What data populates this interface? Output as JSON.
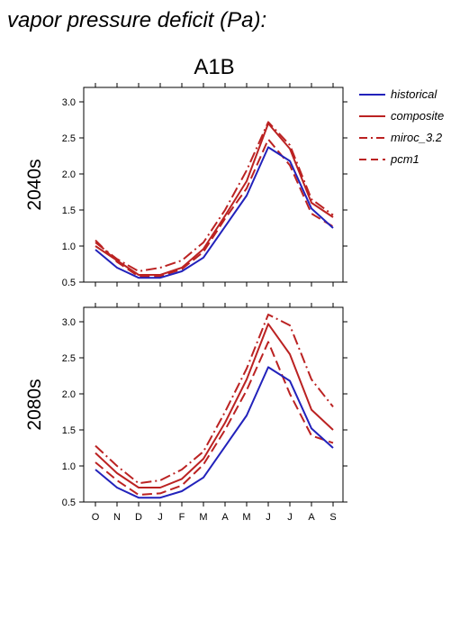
{
  "figure": {
    "title": "vapor pressure deficit (Pa):",
    "scenario": "A1B"
  },
  "colors": {
    "historical": "#2222bb",
    "projection": "#bb2222",
    "axis": "#000000"
  },
  "legend": {
    "placement": "right",
    "entries": [
      {
        "label": "historical",
        "color": "#2222bb",
        "style": "solid"
      },
      {
        "label": "composite",
        "color": "#bb2222",
        "style": "solid"
      },
      {
        "label": "miroc_3.2",
        "color": "#bb2222",
        "style": "dashdot"
      },
      {
        "label": "pcm1",
        "color": "#bb2222",
        "style": "dashed"
      }
    ]
  },
  "chart_data": [
    {
      "type": "line",
      "title": "2040s",
      "categories": [
        "O",
        "N",
        "D",
        "J",
        "F",
        "M",
        "A",
        "M",
        "J",
        "J",
        "A",
        "S"
      ],
      "ylim": [
        0.5,
        3.2
      ],
      "yticks": [
        "0.5",
        "1.0",
        "1.5",
        "2.0",
        "2.5",
        "3.0"
      ],
      "grid": false,
      "series": [
        {
          "name": "historical",
          "style": "solid",
          "color": "#2222bb",
          "values": [
            0.95,
            0.7,
            0.56,
            0.56,
            0.65,
            0.84,
            1.27,
            1.7,
            2.37,
            2.18,
            1.52,
            1.25
          ]
        },
        {
          "name": "composite",
          "style": "solid",
          "color": "#bb2222",
          "values": [
            1.0,
            0.8,
            0.6,
            0.6,
            0.7,
            0.96,
            1.42,
            1.9,
            2.7,
            2.35,
            1.6,
            1.4
          ]
        },
        {
          "name": "miroc_3.2",
          "style": "dashdot",
          "color": "#bb2222",
          "values": [
            1.05,
            0.82,
            0.65,
            0.7,
            0.8,
            1.05,
            1.5,
            2.05,
            2.72,
            2.4,
            1.65,
            1.43
          ]
        },
        {
          "name": "pcm1",
          "style": "dashed",
          "color": "#bb2222",
          "values": [
            1.08,
            0.78,
            0.58,
            0.58,
            0.68,
            0.92,
            1.38,
            1.8,
            2.48,
            2.12,
            1.45,
            1.27
          ]
        }
      ]
    },
    {
      "type": "line",
      "title": "2080s",
      "categories": [
        "O",
        "N",
        "D",
        "J",
        "F",
        "M",
        "A",
        "M",
        "J",
        "J",
        "A",
        "S"
      ],
      "ylim": [
        0.5,
        3.2
      ],
      "yticks": [
        "0.5",
        "1.0",
        "1.5",
        "2.0",
        "2.5",
        "3.0"
      ],
      "grid": false,
      "series": [
        {
          "name": "historical",
          "style": "solid",
          "color": "#2222bb",
          "values": [
            0.95,
            0.7,
            0.56,
            0.56,
            0.65,
            0.84,
            1.27,
            1.7,
            2.37,
            2.18,
            1.52,
            1.25
          ]
        },
        {
          "name": "composite",
          "style": "solid",
          "color": "#bb2222",
          "values": [
            1.18,
            0.9,
            0.7,
            0.7,
            0.82,
            1.1,
            1.6,
            2.2,
            2.97,
            2.55,
            1.78,
            1.5
          ]
        },
        {
          "name": "miroc_3.2",
          "style": "dashdot",
          "color": "#bb2222",
          "values": [
            1.28,
            1.0,
            0.76,
            0.8,
            0.95,
            1.2,
            1.75,
            2.35,
            3.1,
            2.95,
            2.2,
            1.82
          ]
        },
        {
          "name": "pcm1",
          "style": "dashed",
          "color": "#bb2222",
          "values": [
            1.05,
            0.8,
            0.6,
            0.62,
            0.73,
            1.02,
            1.5,
            2.05,
            2.72,
            2.0,
            1.42,
            1.32
          ]
        }
      ]
    }
  ]
}
